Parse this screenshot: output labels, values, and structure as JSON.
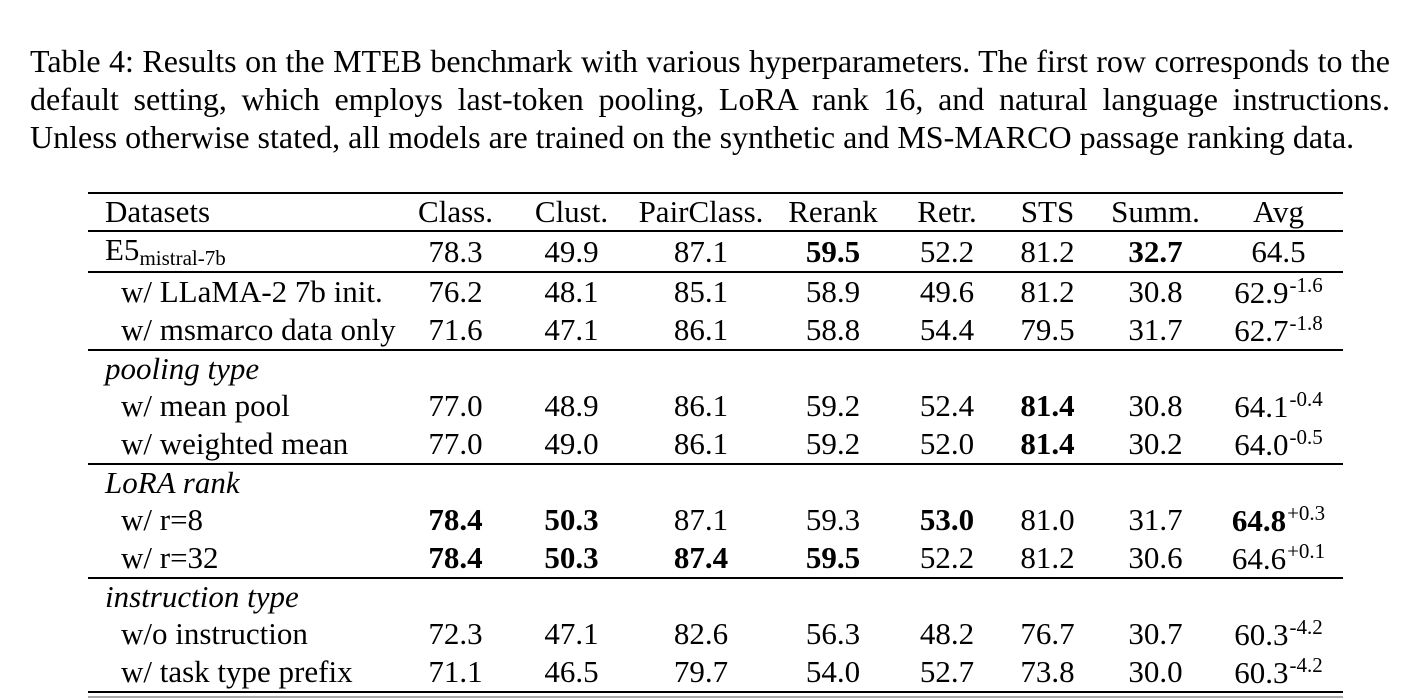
{
  "caption": "Table 4: Results on the MTEB benchmark with various hyperparameters. The first row corresponds to the default setting, which employs last-token pooling, LoRA rank 16, and natural language instructions. Unless otherwise stated, all models are trained on the synthetic and MS-MARCO passage ranking data.",
  "colors": {
    "text": "#000000",
    "background": "#ffffff",
    "rule": "#000000"
  },
  "table": {
    "columns": [
      "Datasets",
      "Class.",
      "Clust.",
      "PairClass.",
      "Rerank",
      "Retr.",
      "STS",
      "Summ.",
      "Avg"
    ],
    "rows": [
      {
        "name": "row-e5-mistral-7b",
        "section": false,
        "indent": false,
        "label": "E5",
        "sub": "mistral-7b",
        "rule_below": true,
        "cells": [
          {
            "t": "78.3"
          },
          {
            "t": "49.9"
          },
          {
            "t": "87.1"
          },
          {
            "t": "59.5",
            "b": true
          },
          {
            "t": "52.2"
          },
          {
            "t": "81.2"
          },
          {
            "t": "32.7",
            "b": true
          },
          {
            "t": "64.5"
          }
        ]
      },
      {
        "name": "row-llama2-7b-init",
        "section": false,
        "indent": true,
        "label": "w/ LLaMA-2 7b init.",
        "rule_below": false,
        "cells": [
          {
            "t": "76.2"
          },
          {
            "t": "48.1"
          },
          {
            "t": "85.1"
          },
          {
            "t": "58.9"
          },
          {
            "t": "49.6"
          },
          {
            "t": "81.2"
          },
          {
            "t": "30.8"
          },
          {
            "t": "62.9",
            "sup": "-1.6"
          }
        ]
      },
      {
        "name": "row-msmarco-data-only",
        "section": false,
        "indent": true,
        "label": "w/ msmarco data only",
        "rule_below": true,
        "cells": [
          {
            "t": "71.6"
          },
          {
            "t": "47.1"
          },
          {
            "t": "86.1"
          },
          {
            "t": "58.8"
          },
          {
            "t": "54.4"
          },
          {
            "t": "79.5"
          },
          {
            "t": "31.7"
          },
          {
            "t": "62.7",
            "sup": "-1.8"
          }
        ]
      },
      {
        "name": "section-pooling-type",
        "section": true,
        "indent": false,
        "label": "pooling type",
        "rule_below": false,
        "cells": []
      },
      {
        "name": "row-mean-pool",
        "section": false,
        "indent": true,
        "label": "w/ mean pool",
        "rule_below": false,
        "cells": [
          {
            "t": "77.0"
          },
          {
            "t": "48.9"
          },
          {
            "t": "86.1"
          },
          {
            "t": "59.2"
          },
          {
            "t": "52.4"
          },
          {
            "t": "81.4",
            "b": true
          },
          {
            "t": "30.8"
          },
          {
            "t": "64.1",
            "sup": "-0.4"
          }
        ]
      },
      {
        "name": "row-weighted-mean",
        "section": false,
        "indent": true,
        "label": "w/ weighted mean",
        "rule_below": true,
        "cells": [
          {
            "t": "77.0"
          },
          {
            "t": "49.0"
          },
          {
            "t": "86.1"
          },
          {
            "t": "59.2"
          },
          {
            "t": "52.0"
          },
          {
            "t": "81.4",
            "b": true
          },
          {
            "t": "30.2"
          },
          {
            "t": "64.0",
            "sup": "-0.5"
          }
        ]
      },
      {
        "name": "section-lora-rank",
        "section": true,
        "indent": false,
        "label": "LoRA rank",
        "rule_below": false,
        "cells": []
      },
      {
        "name": "row-r8",
        "section": false,
        "indent": true,
        "label": "w/ r=8",
        "rule_below": false,
        "cells": [
          {
            "t": "78.4",
            "b": true
          },
          {
            "t": "50.3",
            "b": true
          },
          {
            "t": "87.1"
          },
          {
            "t": "59.3"
          },
          {
            "t": "53.0",
            "b": true
          },
          {
            "t": "81.0"
          },
          {
            "t": "31.7"
          },
          {
            "t": "64.8",
            "b": true,
            "sup": "+0.3"
          }
        ]
      },
      {
        "name": "row-r32",
        "section": false,
        "indent": true,
        "label": "w/ r=32",
        "rule_below": true,
        "cells": [
          {
            "t": "78.4",
            "b": true
          },
          {
            "t": "50.3",
            "b": true
          },
          {
            "t": "87.4",
            "b": true
          },
          {
            "t": "59.5",
            "b": true
          },
          {
            "t": "52.2"
          },
          {
            "t": "81.2"
          },
          {
            "t": "30.6"
          },
          {
            "t": "64.6",
            "sup": "+0.1"
          }
        ]
      },
      {
        "name": "section-instruction-type",
        "section": true,
        "indent": false,
        "label": "instruction type",
        "rule_below": false,
        "cells": []
      },
      {
        "name": "row-no-instruction",
        "section": false,
        "indent": true,
        "label": "w/o instruction",
        "rule_below": false,
        "cells": [
          {
            "t": "72.3"
          },
          {
            "t": "47.1"
          },
          {
            "t": "82.6"
          },
          {
            "t": "56.3"
          },
          {
            "t": "48.2"
          },
          {
            "t": "76.7"
          },
          {
            "t": "30.7"
          },
          {
            "t": "60.3",
            "sup": "-4.2"
          }
        ]
      },
      {
        "name": "row-task-type-prefix",
        "section": false,
        "indent": true,
        "label": "w/ task type prefix",
        "rule_below": false,
        "cells": [
          {
            "t": "71.1"
          },
          {
            "t": "46.5"
          },
          {
            "t": "79.7"
          },
          {
            "t": "54.0"
          },
          {
            "t": "52.7"
          },
          {
            "t": "73.8"
          },
          {
            "t": "30.0"
          },
          {
            "t": "60.3",
            "sup": "-4.2"
          }
        ]
      }
    ]
  }
}
